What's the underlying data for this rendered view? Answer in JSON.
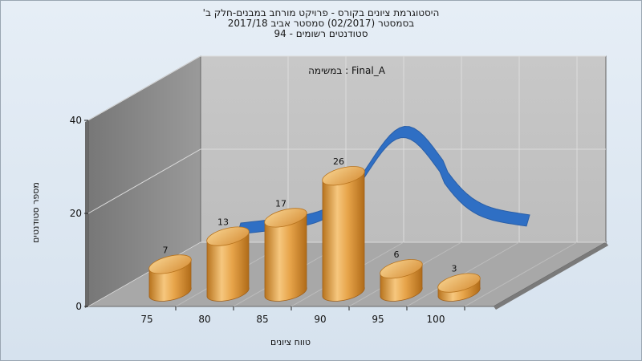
{
  "header": {
    "line1": "היסטוגרמת ציונים בקורס - פרויקט מורחב במבנים-חלק ב'",
    "line2": "בסמסטר  (02/2017)  סמסטר אביב 2017/18",
    "line3": "סטודנטים רשומים - 94"
  },
  "chart_data": {
    "type": "bar",
    "annotation": "במשימה : Final_A",
    "categories": [
      "75",
      "80",
      "85",
      "90",
      "95",
      "100"
    ],
    "values": [
      7,
      13,
      17,
      26,
      6,
      3
    ],
    "xlabel": "טווח ציונים",
    "ylabel": "מספר סטודנטים",
    "ylim": [
      0,
      40
    ],
    "yticks": [
      "0",
      "20",
      "40"
    ],
    "grid": true,
    "colors": {
      "bar": "#e8a64a",
      "bar_top": "#f2c47e",
      "curve": "#2f6fc4",
      "back_wall": "#c6c6c6",
      "side_wall": "#8a8a8a",
      "floor": "#a9a9a9"
    }
  }
}
